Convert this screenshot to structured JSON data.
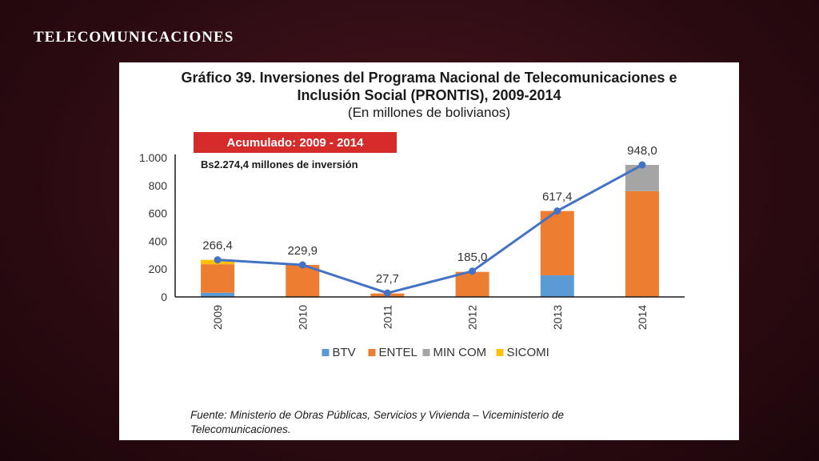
{
  "slide": {
    "title": "TELECOMUNICACIONES"
  },
  "chart_data": {
    "type": "bar",
    "title_line1": "Gráfico 39. Inversiones del Programa Nacional de Telecomunicaciones e",
    "title_line2": "Inclusión Social (PRONTIS), 2009-2014",
    "subtitle": "(En millones de bolivianos)",
    "annotation_badge": "Acumulado: 2009 - 2014",
    "annotation_text": "Bs2.274,4 millones de inversión",
    "categories": [
      "2009",
      "2010",
      "2011",
      "2012",
      "2013",
      "2014"
    ],
    "stacked": true,
    "series": [
      {
        "name": "BTV",
        "color": "#5b9bd5",
        "values": [
          30,
          0,
          0,
          0,
          155,
          0
        ]
      },
      {
        "name": "ENTEL",
        "color": "#ed7d31",
        "values": [
          205,
          230,
          25,
          180,
          462,
          760
        ]
      },
      {
        "name": "MIN COM",
        "color": "#a5a5a5",
        "values": [
          0,
          0,
          0,
          0,
          0,
          188
        ]
      },
      {
        "name": "SICOMI",
        "color": "#ffc000",
        "values": [
          31,
          0,
          0,
          0,
          0,
          0
        ]
      }
    ],
    "line": {
      "color": "#4472c4",
      "values": [
        266.4,
        229.9,
        27.7,
        185.0,
        617.4,
        948.0
      ],
      "labels": [
        "266,4",
        "229,9",
        "27,7",
        "185,0",
        "617,4",
        "948,0"
      ]
    },
    "y_ticks": [
      0,
      200,
      400,
      600,
      800,
      1000
    ],
    "y_tick_labels": [
      "0",
      "200",
      "400",
      "600",
      "800",
      "1.000"
    ],
    "ylim": [
      0,
      1000
    ],
    "grid": false,
    "legend_position": "bottom",
    "source": "Fuente: Ministerio de Obras Públicas, Servicios y Vivienda – Viceministerio de Telecomunicaciones."
  }
}
